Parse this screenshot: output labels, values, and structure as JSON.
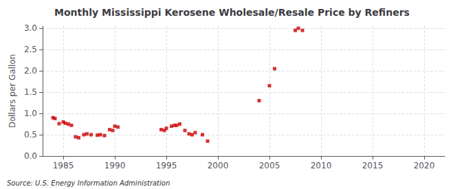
{
  "chart_data": {
    "type": "scatter",
    "title": "Monthly Mississippi Kerosene Wholesale/Resale Price by Refiners",
    "ylabel": "Dollars per Gallon",
    "annotations": [
      "Source: U.S. Energy Information Administration"
    ],
    "x": [
      1984.0,
      1984.2,
      1984.6,
      1985.0,
      1985.2,
      1985.5,
      1985.8,
      1986.2,
      1986.5,
      1987.0,
      1987.3,
      1987.7,
      1988.3,
      1988.6,
      1989.0,
      1989.5,
      1989.8,
      1990.0,
      1990.3,
      1994.5,
      1994.8,
      1995.0,
      1995.5,
      1995.8,
      1996.0,
      1996.3,
      1996.8,
      1997.2,
      1997.5,
      1997.8,
      1998.5,
      1999.0,
      2004.0,
      2005.0,
      2005.5,
      2007.5,
      2007.8,
      2008.2
    ],
    "values": [
      0.9,
      0.88,
      0.76,
      0.8,
      0.77,
      0.75,
      0.72,
      0.45,
      0.43,
      0.5,
      0.52,
      0.5,
      0.49,
      0.5,
      0.48,
      0.62,
      0.6,
      0.7,
      0.68,
      0.62,
      0.6,
      0.65,
      0.7,
      0.72,
      0.72,
      0.75,
      0.6,
      0.52,
      0.5,
      0.55,
      0.5,
      0.35,
      1.3,
      1.65,
      2.05,
      2.95,
      3.0,
      2.95
    ],
    "color": "#cc0000",
    "marker": "square",
    "xlim": [
      1983,
      2022
    ],
    "ylim": [
      0.0,
      3.05
    ],
    "xticks": [
      1985,
      1990,
      1995,
      2000,
      2005,
      2010,
      2015,
      2020
    ],
    "yticks": [
      {
        "value": 0,
        "label": "0.0"
      },
      0.5,
      {
        "value": 1,
        "label": "1.0"
      },
      1.5,
      {
        "value": 2,
        "label": "2.0"
      },
      2.5,
      {
        "value": 3,
        "label": "3.0"
      }
    ],
    "grid": true
  }
}
